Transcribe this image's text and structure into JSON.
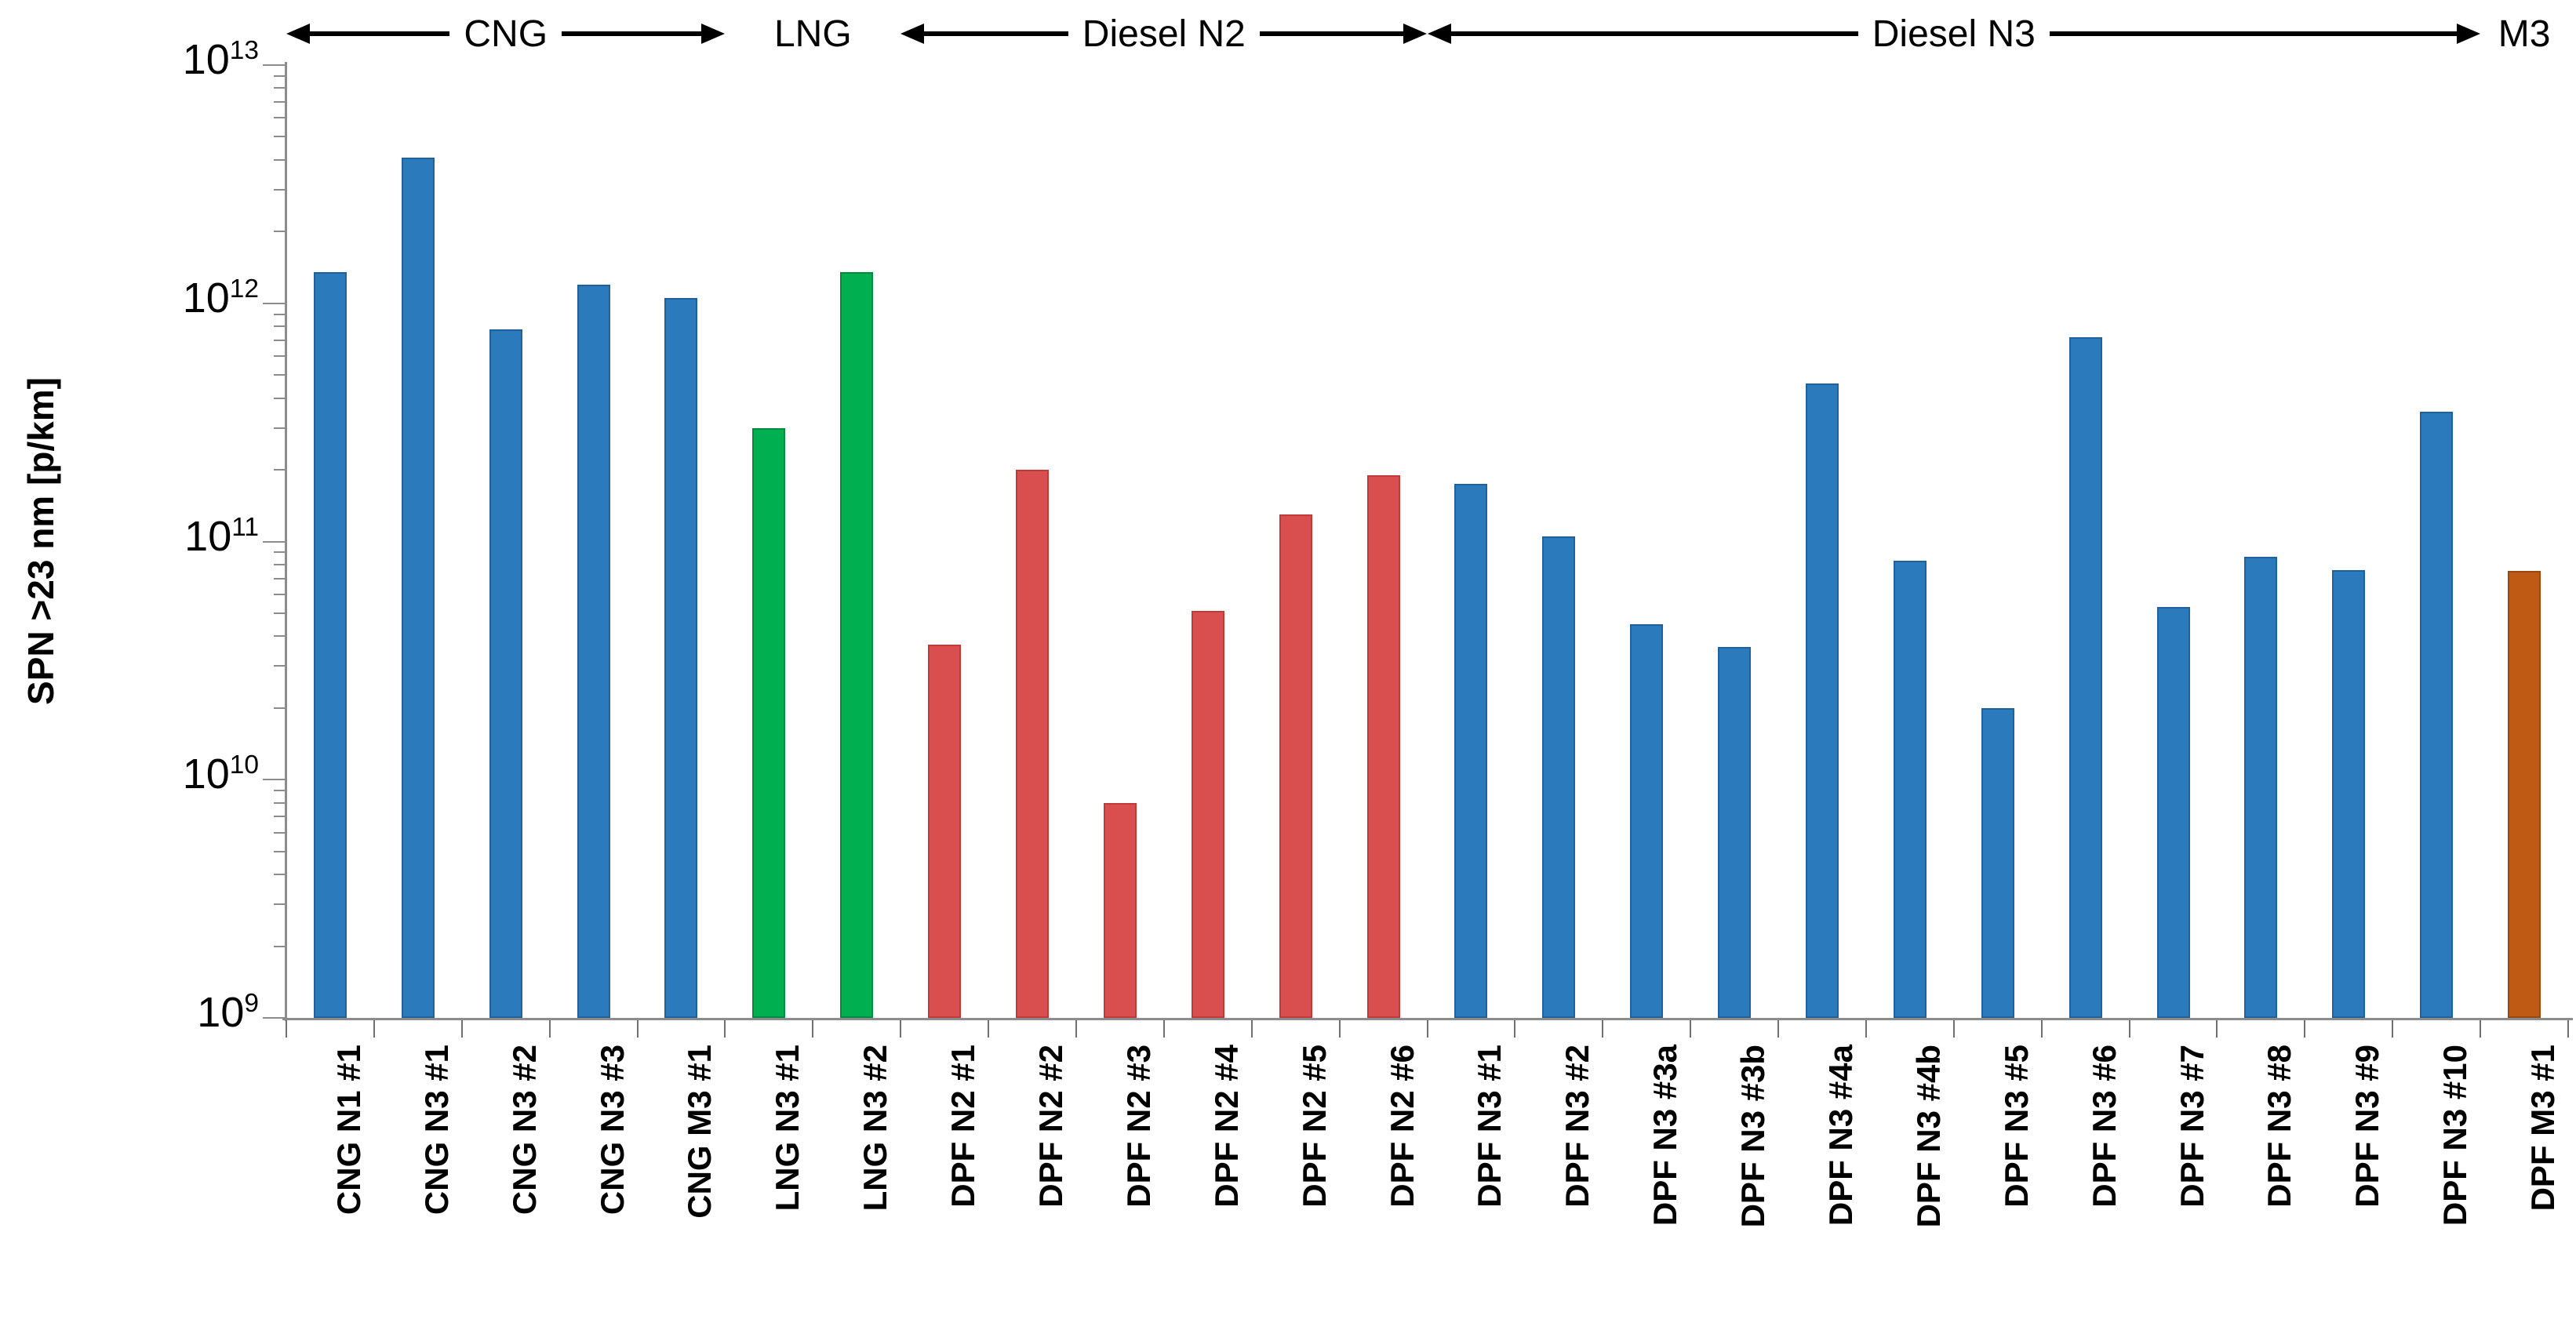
{
  "chart_data": {
    "type": "bar",
    "title": "",
    "ylabel": "SPN >23 nm [p/km]",
    "xlabel": "",
    "y_axis": {
      "scale": "log",
      "min_exp": 9,
      "max_exp": 13,
      "tick_exponents": [
        13,
        12,
        11,
        10,
        9
      ],
      "unit": "p/km"
    },
    "grid": false,
    "legend": "none",
    "categories": [
      "CNG N1 #1",
      "CNG N3 #1",
      "CNG N3 #2",
      "CNG N3 #3",
      "CNG M3 #1",
      "LNG N3 #1",
      "LNG N3 #2",
      "DPF N2 #1",
      "DPF N2 #2",
      "DPF N2 #3",
      "DPF N2 #4",
      "DPF N2 #5",
      "DPF N2 #6",
      "DPF N3 #1",
      "DPF N3 #2",
      "DPF N3 #3a",
      "DPF N3 #3b",
      "DPF N3 #4a",
      "DPF N3 #4b",
      "DPF N3 #5",
      "DPF N3 #6",
      "DPF N3 #7",
      "DPF N3 #8",
      "DPF N3 #9",
      "DPF N3 #10",
      "DPF M3 #1"
    ],
    "values": [
      1350000000000.0,
      4100000000000.0,
      780000000000.0,
      1200000000000.0,
      1050000000000.0,
      300000000000.0,
      1350000000000.0,
      37000000000.0,
      200000000000.0,
      8000000000.0,
      51000000000.0,
      130000000000.0,
      190000000000.0,
      175000000000.0,
      105000000000.0,
      45000000000.0,
      36000000000.0,
      460000000000.0,
      83000000000.0,
      20000000000.0,
      720000000000.0,
      53000000000.0,
      86000000000.0,
      76000000000.0,
      350000000000.0,
      75000000000.0
    ],
    "groups": [
      {
        "label": "CNG",
        "start": 0,
        "end": 4,
        "style": "arrows",
        "color_key": "blue"
      },
      {
        "label": "LNG",
        "start": 5,
        "end": 6,
        "style": "text",
        "color_key": "green"
      },
      {
        "label": "Diesel N2",
        "start": 7,
        "end": 12,
        "style": "arrows",
        "color_key": "red"
      },
      {
        "label": "Diesel N3",
        "start": 13,
        "end": 24,
        "style": "arrows",
        "color_key": "blue"
      },
      {
        "label": "M3",
        "start": 25,
        "end": 25,
        "style": "text",
        "color_key": "brown"
      }
    ],
    "palette": {
      "blue": {
        "fill": "#2B7BBC",
        "border": "#1F629B"
      },
      "green": {
        "fill": "#00B050",
        "border": "#008C40"
      },
      "red": {
        "fill": "#D94F4F",
        "border": "#C13A3A"
      },
      "brown": {
        "fill": "#BE5A14",
        "border": "#984810"
      }
    }
  }
}
